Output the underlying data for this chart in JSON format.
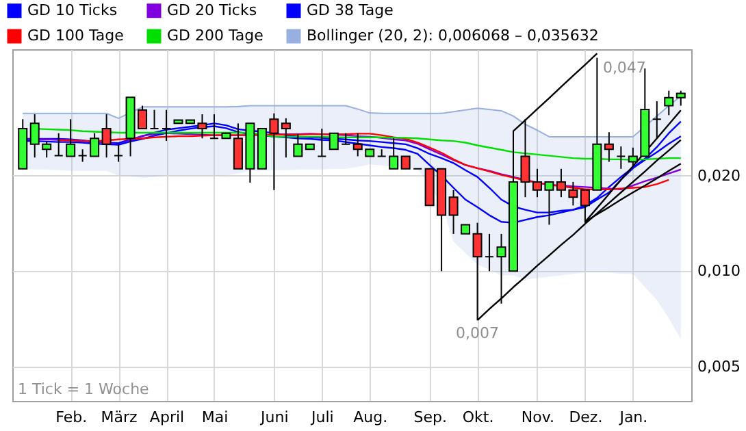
{
  "chart_data": {
    "type": "candlestick",
    "categories": [
      null,
      null,
      null,
      null,
      "Feb.",
      null,
      null,
      null,
      "März",
      null,
      null,
      null,
      "April",
      null,
      null,
      null,
      "Mai",
      null,
      null,
      null,
      null,
      "Juni",
      null,
      null,
      null,
      "Juli",
      null,
      null,
      null,
      "Aug.",
      null,
      null,
      null,
      null,
      "Sep.",
      null,
      null,
      null,
      "Okt.",
      null,
      null,
      null,
      null,
      "Nov.",
      null,
      null,
      null,
      "Dez.",
      null,
      null,
      null,
      "Jan.",
      null,
      null,
      null,
      null
    ],
    "ohlc": [
      [
        0.021,
        0.0301,
        0.021,
        0.0281
      ],
      [
        0.0251,
        0.0312,
        0.0228,
        0.0292
      ],
      [
        0.0242,
        0.0257,
        0.0228,
        0.0251
      ],
      [
        0.0231,
        0.0272,
        0.0231,
        0.0231
      ],
      [
        0.023,
        0.0301,
        0.023,
        0.0251
      ],
      [
        0.0231,
        0.0242,
        0.0221,
        0.0231
      ],
      [
        0.023,
        0.0272,
        0.023,
        0.0262
      ],
      [
        0.0281,
        0.0312,
        0.0228,
        0.0251
      ],
      [
        0.0231,
        0.0251,
        0.0221,
        0.0231
      ],
      [
        0.0262,
        0.0353,
        0.023,
        0.0353
      ],
      [
        0.0322,
        0.0332,
        0.0281,
        0.0281
      ],
      [
        0.0281,
        0.0322,
        0.0281,
        0.0281
      ],
      [
        0.0281,
        0.0322,
        0.0257,
        0.0281
      ],
      [
        0.0292,
        0.0299,
        0.0292,
        0.0299
      ],
      [
        0.0292,
        0.0299,
        0.0292,
        0.0299
      ],
      [
        0.0292,
        0.0312,
        0.0262,
        0.0281
      ],
      [
        0.0262,
        0.0312,
        0.0262,
        0.0262
      ],
      [
        0.0262,
        0.0272,
        0.0262,
        0.0272
      ],
      [
        0.0262,
        0.0292,
        0.021,
        0.021
      ],
      [
        0.021,
        0.0292,
        0.019,
        0.0292
      ],
      [
        0.021,
        0.0281,
        0.021,
        0.0281
      ],
      [
        0.0301,
        0.0314,
        0.018,
        0.0272
      ],
      [
        0.0292,
        0.0303,
        0.0228,
        0.0281
      ],
      [
        0.023,
        0.027,
        0.023,
        0.0251
      ],
      [
        0.0242,
        0.0251,
        0.0242,
        0.0251
      ],
      [
        0.023,
        0.0281,
        0.023,
        0.023
      ],
      [
        0.0242,
        0.0272,
        0.0242,
        0.0272
      ],
      [
        0.0251,
        0.0272,
        0.0251,
        0.0251
      ],
      [
        0.0251,
        0.0272,
        0.023,
        0.0242
      ],
      [
        0.023,
        0.0242,
        0.023,
        0.0242
      ],
      [
        0.023,
        0.0242,
        0.023,
        0.023
      ],
      [
        0.021,
        0.0262,
        0.021,
        0.023
      ],
      [
        0.023,
        0.023,
        0.021,
        0.021
      ],
      [
        0.021,
        0.021,
        0.021,
        0.021
      ],
      [
        0.021,
        0.021,
        0.0161,
        0.0161
      ],
      [
        0.021,
        0.021,
        0.01,
        0.015
      ],
      [
        0.0171,
        0.018,
        0.0131,
        0.015
      ],
      [
        0.0131,
        0.014,
        0.0131,
        0.014
      ],
      [
        0.0131,
        0.0142,
        0.007,
        0.0111
      ],
      [
        0.0111,
        0.0131,
        0.01,
        0.0111
      ],
      [
        0.0111,
        0.0131,
        0.0079,
        0.0119
      ],
      [
        0.01,
        0.0277,
        0.01,
        0.0191
      ],
      [
        0.023,
        0.0301,
        0.0171,
        0.0191
      ],
      [
        0.0191,
        0.021,
        0.0171,
        0.018
      ],
      [
        0.018,
        0.0191,
        0.014,
        0.0191
      ],
      [
        0.0191,
        0.021,
        0.0171,
        0.018
      ],
      [
        0.018,
        0.0191,
        0.0161,
        0.0171
      ],
      [
        0.018,
        0.018,
        0.0142,
        0.0161
      ],
      [
        0.018,
        0.047,
        0.018,
        0.0251
      ],
      [
        0.0251,
        0.0274,
        0.0221,
        0.0242
      ],
      [
        0.023,
        0.0247,
        0.021,
        0.023
      ],
      [
        0.0221,
        0.0245,
        0.0214,
        0.023
      ],
      [
        0.023,
        0.0435,
        0.023,
        0.0323
      ],
      [
        0.0301,
        0.0343,
        0.0261,
        0.0301
      ],
      [
        0.0332,
        0.037,
        0.031,
        0.0352
      ],
      [
        0.0352,
        0.037,
        0.0332,
        0.0363
      ]
    ],
    "colors": [
      "#33ff33",
      "#33ff33",
      "#33ff33",
      "#000000",
      "#33ff33",
      "#000000",
      "#33ff33",
      "#ff3333",
      "#000000",
      "#33ff33",
      "#ff3333",
      "#000000",
      "#000000",
      "#33ff33",
      "#33ff33",
      "#ff3333",
      "#000000",
      "#33ff33",
      "#ff3333",
      "#33ff33",
      "#33ff33",
      "#ff3333",
      "#ff3333",
      "#33ff33",
      "#33ff33",
      "#000000",
      "#33ff33",
      "#000000",
      "#ff3333",
      "#33ff33",
      "#000000",
      "#33ff33",
      "#ff3333",
      "#000000",
      "#ff3333",
      "#ff3333",
      "#ff3333",
      "#33ff33",
      "#ff3333",
      "#000000",
      "#33ff33",
      "#33ff33",
      "#ff3333",
      "#ff3333",
      "#33ff33",
      "#ff3333",
      "#ff3333",
      "#ff3333",
      "#33ff33",
      "#ff3333",
      "#000000",
      "#33ff33",
      "#33ff33",
      "#000000",
      "#33ff33",
      "#33ff33"
    ],
    "series": [
      {
        "type": "line",
        "name": "GD 10 Ticks",
        "color": "#0000ff",
        "values": [
          0.0261,
          0.0261,
          0.0261,
          0.0261,
          0.026,
          0.0258,
          0.0256,
          0.0254,
          0.0253,
          0.026,
          0.0266,
          0.0273,
          0.0279,
          0.0282,
          0.0285,
          0.0288,
          0.0292,
          0.0288,
          0.028,
          0.0277,
          0.0275,
          0.0272,
          0.0268,
          0.0265,
          0.0264,
          0.0263,
          0.0261,
          0.026,
          0.0258,
          0.0257,
          0.0255,
          0.0253,
          0.0251,
          0.0244,
          0.0234,
          0.0227,
          0.0219,
          0.0208,
          0.0198,
          0.0183,
          0.0168,
          0.016,
          0.0156,
          0.0153,
          0.0153,
          0.0155,
          0.0156,
          0.0161,
          0.017,
          0.0184,
          0.0198,
          0.0212,
          0.0226,
          0.0246,
          0.0272,
          0.0296
        ]
      },
      {
        "type": "line",
        "name": "GD 20 Ticks",
        "color": "#8000e0",
        "values": [
          0.026,
          0.026,
          0.026,
          0.0259,
          0.0259,
          0.0257,
          0.0256,
          0.0254,
          0.025,
          0.0258,
          0.0267,
          0.027,
          0.0272,
          0.0271,
          0.027,
          0.0269,
          0.0268,
          0.0268,
          0.0268,
          null,
          null,
          0.0269,
          0.027,
          0.027,
          0.0271,
          0.027,
          0.0269,
          0.0268,
          0.0266,
          0.0265,
          0.0263,
          0.026,
          0.0258,
          0.0252,
          0.0242,
          0.0233,
          0.0224,
          0.0216,
          0.0211,
          0.0207,
          0.0202,
          0.0198,
          0.0194,
          0.019,
          0.0187,
          0.0186,
          0.0185,
          0.0184,
          0.0183,
          0.0182,
          0.0181,
          0.0186,
          0.0192,
          0.0197,
          0.0203,
          0.0209
        ]
      },
      {
        "type": "line",
        "name": "GD 38 Tage",
        "color": "#0000ff",
        "values": [
          0.0257,
          0.0257,
          0.0256,
          0.0255,
          0.0255,
          0.0254,
          0.0252,
          0.0251,
          0.025,
          0.0256,
          0.0261,
          0.0267,
          0.0272,
          0.0277,
          0.0281,
          0.0284,
          0.0286,
          0.0282,
          0.0274,
          0.027,
          0.0268,
          0.0265,
          0.0264,
          0.0262,
          0.0261,
          0.0259,
          0.0258,
          0.0255,
          0.0252,
          0.0249,
          0.0246,
          0.0244,
          0.0241,
          0.0234,
          0.0216,
          0.02,
          0.0183,
          0.0168,
          0.0159,
          0.015,
          0.0143,
          0.0142,
          0.0145,
          0.0148,
          0.015,
          0.0153,
          0.0156,
          0.0159,
          0.0168,
          0.0177,
          0.0194,
          0.0211,
          0.0224,
          0.0237,
          0.0252,
          0.0266
        ]
      },
      {
        "type": "line",
        "name": "GD 100 Tage",
        "color": "#ff0000",
        "values": [
          null,
          null,
          null,
          0.0258,
          0.0258,
          0.0257,
          0.0257,
          0.0258,
          0.026,
          0.0261,
          0.0262,
          0.0264,
          0.0265,
          0.0266,
          0.0266,
          0.0267,
          0.0268,
          0.0268,
          0.0268,
          0.0268,
          0.0269,
          0.0269,
          0.0269,
          0.0269,
          0.027,
          0.027,
          0.027,
          0.027,
          0.0271,
          0.0271,
          0.0268,
          0.0264,
          0.0261,
          0.0254,
          0.0245,
          0.0236,
          0.0225,
          0.0216,
          0.0211,
          0.0206,
          0.0201,
          0.0197,
          0.0193,
          0.019,
          0.0187,
          0.0185,
          0.0183,
          0.0181,
          0.0181,
          0.0181,
          0.0182,
          0.0183,
          0.0184,
          0.0188,
          0.0194,
          null
        ]
      },
      {
        "type": "line",
        "name": "GD 200 Tage",
        "color": "#00e000",
        "values": [
          null,
          0.0281,
          0.028,
          0.0279,
          0.0278,
          0.0276,
          0.0275,
          0.0274,
          0.0273,
          0.0273,
          0.0273,
          0.0273,
          0.0273,
          0.0273,
          0.0273,
          0.0273,
          0.0273,
          0.0273,
          0.0273,
          0.0273,
          0.0269,
          0.0265,
          0.0265,
          0.0265,
          0.0265,
          0.0265,
          0.0264,
          0.0264,
          0.0264,
          0.0264,
          0.0264,
          0.0263,
          0.0263,
          0.0262,
          0.026,
          0.0258,
          0.0257,
          0.0254,
          0.0249,
          0.0245,
          0.0241,
          0.0237,
          0.0235,
          0.0233,
          0.0231,
          0.0229,
          0.0227,
          0.0226,
          0.0226,
          0.0225,
          0.0225,
          0.0224,
          0.0225,
          0.0226,
          0.0227,
          0.0227
        ]
      },
      {
        "type": "line",
        "name": "Bollinger (20, 2): 0,006068 – 0,035632",
        "color": "#98b0e0",
        "values": [
          0.0314,
          0.0314,
          0.0314,
          0.0314,
          0.0314,
          0.0314,
          0.0314,
          0.0314,
          0.0303,
          null,
          0.0329,
          0.0329,
          0.0329,
          0.0329,
          0.0329,
          0.0329,
          0.0329,
          0.0329,
          0.033,
          0.0332,
          0.0332,
          0.0332,
          0.0332,
          0.0332,
          0.0332,
          0.0332,
          0.0332,
          0.0332,
          0.0324,
          0.0315,
          0.0314,
          0.0314,
          0.0314,
          0.0314,
          0.0314,
          0.0314,
          0.0318,
          0.0322,
          0.0326,
          0.0323,
          0.032,
          0.0308,
          0.029,
          0.0278,
          0.0265,
          0.0265,
          0.0265,
          0.0265,
          0.0265,
          0.0265,
          0.0265,
          0.0265,
          null,
          0.0308,
          0.0332,
          0.0356
        ],
        "upper": [
          0.0314,
          0.0314,
          0.0314,
          0.0314,
          0.0314,
          0.0314,
          0.0314,
          0.0314,
          0.0303,
          null,
          0.0329,
          0.0329,
          0.0329,
          0.0329,
          0.0329,
          0.0329,
          0.0329,
          0.0329,
          0.033,
          0.0332,
          0.0332,
          0.0332,
          0.0332,
          0.0332,
          0.0332,
          0.0332,
          0.0332,
          0.0332,
          0.0324,
          0.0315,
          0.0314,
          0.0314,
          0.0314,
          0.0314,
          0.0314,
          0.0314,
          0.0318,
          0.0322,
          0.0326,
          0.0323,
          0.032,
          0.0308,
          0.029,
          0.0278,
          0.0265,
          0.0265,
          0.0265,
          0.0265,
          0.0265,
          0.0265,
          0.0265,
          0.0265,
          null,
          0.0308,
          0.0332,
          0.0356
        ],
        "lower": [
          0.021,
          0.0209,
          0.0209,
          0.0208,
          0.0207,
          0.0207,
          0.0207,
          0.0207,
          0.02,
          null,
          0.0197,
          0.0198,
          0.02,
          0.02,
          0.02,
          0.02,
          0.02,
          0.02,
          0.0203,
          0.0207,
          0.0207,
          0.0208,
          0.0208,
          0.0209,
          0.0209,
          0.0209,
          0.021,
          0.021,
          0.0213,
          0.0217,
          0.0215,
          0.0213,
          0.0212,
          0.021,
          0.0186,
          0.0162,
          0.0124,
          0.0114,
          0.0105,
          0.0101,
          0.0097,
          0.0097,
          0.0094,
          0.0095,
          0.0096,
          0.0097,
          0.0098,
          0.0099,
          0.0099,
          0.0099,
          0.0098,
          0.0098,
          null,
          0.0081,
          0.0071,
          0.0061
        ]
      },
      {
        "type": "line",
        "color": "#000000",
        "values": [
          null,
          null,
          null,
          null,
          null,
          null,
          null,
          null,
          null,
          null,
          null,
          null,
          null,
          null,
          null,
          null,
          null,
          null,
          null,
          null,
          null,
          null,
          null,
          null,
          null,
          null,
          null,
          null,
          null,
          null,
          null,
          null,
          null,
          null,
          null,
          null,
          null,
          null,
          0.007,
          0.0076,
          0.0082,
          0.0089,
          0.0096,
          0.0104,
          0.0112,
          0.0121,
          0.013,
          0.0141,
          0.0152,
          0.0164,
          0.0177,
          0.0191,
          0.0206,
          0.0223,
          0.024,
          0.0259
        ]
      },
      {
        "type": "line",
        "color": "#000000",
        "values": [
          null,
          null,
          null,
          null,
          null,
          null,
          null,
          null,
          null,
          null,
          null,
          null,
          null,
          null,
          null,
          null,
          null,
          null,
          null,
          null,
          null,
          null,
          null,
          null,
          null,
          null,
          null,
          null,
          null,
          null,
          null,
          null,
          null,
          null,
          null,
          null,
          null,
          null,
          null,
          null,
          null,
          0.0276,
          0.0299,
          0.0324,
          0.0351,
          0.0381,
          0.0413,
          0.0447,
          0.0485,
          null,
          null,
          null,
          null,
          null,
          null,
          null
        ]
      },
      {
        "type": "line",
        "color": "#000000",
        "values": [
          null,
          null,
          null,
          null,
          null,
          null,
          null,
          null,
          null,
          null,
          null,
          null,
          null,
          null,
          null,
          null,
          null,
          null,
          null,
          null,
          null,
          null,
          null,
          null,
          null,
          null,
          null,
          null,
          null,
          null,
          null,
          null,
          null,
          null,
          null,
          null,
          null,
          null,
          null,
          null,
          null,
          null,
          null,
          null,
          null,
          null,
          null,
          0.0143,
          0.0158,
          0.0175,
          0.0194,
          0.0214,
          0.0237,
          0.0262,
          0.029,
          0.0321
        ]
      },
      {
        "type": "line",
        "color": "#000000",
        "values": [
          null,
          null,
          null,
          null,
          null,
          null,
          null,
          null,
          null,
          null,
          null,
          null,
          null,
          null,
          null,
          null,
          null,
          null,
          null,
          null,
          null,
          null,
          null,
          null,
          null,
          null,
          null,
          null,
          null,
          null,
          null,
          null,
          null,
          null,
          null,
          null,
          null,
          null,
          null,
          null,
          null,
          null,
          null,
          null,
          null,
          null,
          null,
          0.0143,
          0.0151,
          0.0159,
          0.0168,
          0.0177,
          0.0186,
          0.0196,
          0.0207,
          0.0218
        ]
      }
    ],
    "ylim": [
      0.0039,
      0.05
    ],
    "yticks": [
      {
        "value": 0.005,
        "label": "0,005"
      },
      {
        "value": 0.01,
        "label": "0,010"
      },
      {
        "value": 0.02,
        "label": "0,020"
      }
    ],
    "log": true,
    "grid": true,
    "legend": "top left",
    "annotations": [
      "0,047",
      {
        "text": "0,007",
        "x": "Okt.",
        "y": 0.007
      },
      "1 Tick = 1 Woche"
    ]
  }
}
